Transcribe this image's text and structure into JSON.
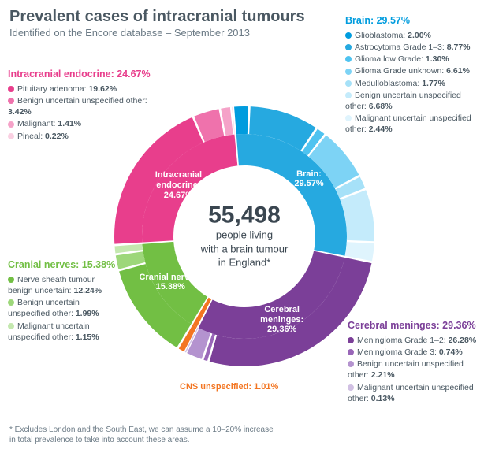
{
  "title": "Prevalent cases of intracranial tumours",
  "subtitle": "Identified on the Encore database – September 2013",
  "footnote": "* Excludes London and the South East, we can assume a 10–20% increase\nin total prevalence to take into account these areas.",
  "center": {
    "number": "55,498",
    "line1": "people living",
    "line2": "with a brain tumour",
    "line3": "in England*"
  },
  "inner": [
    {
      "key": "brain",
      "label": "Brain:",
      "pct": "29.57%",
      "value": 29.57,
      "color": "#26a9e0"
    },
    {
      "key": "meninges",
      "label": "Cerebral meninges:",
      "pct": "29.36%",
      "value": 29.36,
      "color": "#7b3f98"
    },
    {
      "key": "cns",
      "label": "CNS unspecified:",
      "pct": "1.01%",
      "value": 1.01,
      "color": "#f37521"
    },
    {
      "key": "cranial",
      "label": "Cranial nerves:",
      "pct": "15.38%",
      "value": 15.38,
      "color": "#72bf44"
    },
    {
      "key": "endocrine",
      "label": "Intracranial endocrine:",
      "pct": "24.67%",
      "value": 24.67,
      "color": "#e83e8c"
    }
  ],
  "outer": {
    "brain": [
      {
        "label": "Glioblastoma:",
        "pct": "2.00%",
        "value": 2.0,
        "color": "#009cde"
      },
      {
        "label": "Astrocytoma Grade 1–3:",
        "pct": "8.77%",
        "value": 8.77,
        "color": "#26a9e0"
      },
      {
        "label": "Glioma low Grade:",
        "pct": "1.30%",
        "value": 1.3,
        "color": "#4fc3f0"
      },
      {
        "label": "Glioma Grade unknown:",
        "pct": "6.61%",
        "value": 6.61,
        "color": "#7dd3f5"
      },
      {
        "label": "Medulloblastoma:",
        "pct": "1.77%",
        "value": 1.77,
        "color": "#a6e1f8"
      },
      {
        "label": "Benign uncertain unspecified other:",
        "pct": "6.68%",
        "value": 6.68,
        "color": "#c4ebfb"
      },
      {
        "label": "Malignant uncertain unspecified other:",
        "pct": "2.44%",
        "value": 2.44,
        "color": "#dff4fd"
      }
    ],
    "meninges": [
      {
        "label": "Meningioma Grade 1–2:",
        "pct": "26.28%",
        "value": 26.28,
        "color": "#7b3f98"
      },
      {
        "label": "Meningioma Grade 3:",
        "pct": "0.74%",
        "value": 0.74,
        "color": "#9966b8"
      },
      {
        "label": "Benign uncertain unspecified other:",
        "pct": "2.21%",
        "value": 2.21,
        "color": "#b493cf"
      },
      {
        "label": "Malignant uncertain unspecified other:",
        "pct": "0.13%",
        "value": 0.13,
        "color": "#d1c0e3"
      }
    ],
    "cns": [
      {
        "label": "CNS unspecified:",
        "pct": "1.01%",
        "value": 1.01,
        "color": "#f37521"
      }
    ],
    "cranial": [
      {
        "label": "Nerve sheath tumour benign uncertain:",
        "pct": "12.24%",
        "value": 12.24,
        "color": "#72bf44"
      },
      {
        "label": "Benign uncertain unspecified other:",
        "pct": "1.99%",
        "value": 1.99,
        "color": "#9dd77a"
      },
      {
        "label": "Malignant uncertain unspecified other:",
        "pct": "1.15%",
        "value": 1.15,
        "color": "#c4e8af"
      }
    ],
    "endocrine": [
      {
        "label": "Pituitary adenoma:",
        "pct": "19.62%",
        "value": 19.62,
        "color": "#e83e8c"
      },
      {
        "label": "Benign uncertain unspecified other:",
        "pct": "3.42%",
        "value": 3.42,
        "color": "#ef72ac"
      },
      {
        "label": "Malignant:",
        "pct": "1.41%",
        "value": 1.41,
        "color": "#f5a2c8"
      },
      {
        "label": "Pineal:",
        "pct": "0.22%",
        "value": 0.22,
        "color": "#fad0e2"
      }
    ]
  },
  "group_titles": {
    "brain": {
      "text": "Brain: 29.57%",
      "color": "#009cde"
    },
    "meninges": {
      "text": "Cerebral meninges: 29.36%",
      "color": "#7b3f98"
    },
    "cns": {
      "text": "CNS unspecified: 1.01%",
      "color": "#f37521"
    },
    "cranial": {
      "text": "Cranial nerves: 15.38%",
      "color": "#72bf44"
    },
    "endocrine": {
      "text": "Intracranial endocrine: 24.67%",
      "color": "#e83e8c"
    }
  },
  "chart_style": {
    "type": "nested-donut",
    "outer_r": 165,
    "mid_r": 130,
    "inner_r": 90,
    "hole_r": 82,
    "gap_deg": 0.5,
    "bg": "#ffffff",
    "start_angle_deg": -5
  }
}
